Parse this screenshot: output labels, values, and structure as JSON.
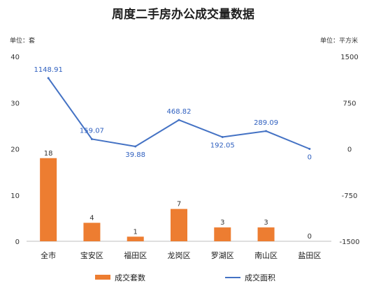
{
  "chart_data": {
    "type": "bar+line",
    "title": "周度二手房办公成交量数据",
    "left_unit": "单位：套",
    "right_unit": "单位：平方米",
    "categories": [
      "全市",
      "宝安区",
      "福田区",
      "龙岗区",
      "罗湖区",
      "南山区",
      "盐田区"
    ],
    "left_axis": {
      "min": 0,
      "max": 40,
      "ticks": [
        0,
        10,
        20,
        30,
        40
      ]
    },
    "right_axis": {
      "min": -1500,
      "max": 1500,
      "ticks": [
        -1500,
        -750,
        0,
        750,
        1500
      ]
    },
    "series": [
      {
        "name": "成交套数",
        "type": "bar",
        "axis": "left",
        "color": "#ed7d31",
        "values": [
          18,
          4,
          1,
          7,
          3,
          3,
          0
        ],
        "labels": [
          "18",
          "4",
          "1",
          "7",
          "3",
          "3",
          "0"
        ]
      },
      {
        "name": "成交面积",
        "type": "line",
        "axis": "right",
        "color": "#4472c4",
        "values": [
          1148.91,
          159.07,
          39.88,
          468.82,
          192.05,
          289.09,
          0
        ],
        "labels": [
          "1148.91",
          "159.07",
          "39.88",
          "468.82",
          "192.05",
          "289.09",
          "0"
        ]
      }
    ],
    "legend_position": "bottom",
    "grid": false
  }
}
